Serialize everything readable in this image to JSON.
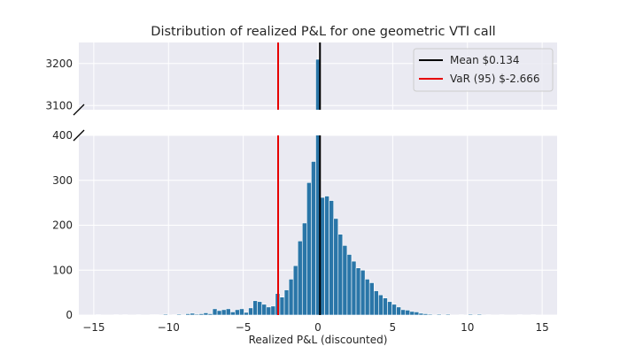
{
  "chart_data": {
    "type": "bar",
    "title": "Distribution of realized P&L for one geometric VTI call",
    "xlabel": "Realized P&L (discounted)",
    "ylabel": "",
    "xlim": [
      -16,
      16
    ],
    "broken_y_axis": true,
    "ylim_lower": [
      0,
      400
    ],
    "ylim_upper": [
      3090,
      3250
    ],
    "x_ticks": [
      -15,
      -10,
      -5,
      0,
      5,
      10,
      15
    ],
    "y_ticks_lower": [
      0,
      100,
      200,
      300,
      400
    ],
    "y_ticks_upper": [
      3100,
      3200
    ],
    "bin_width": 0.3,
    "bins": [
      {
        "x": -14.7,
        "count": 1
      },
      {
        "x": -13.5,
        "count": 1
      },
      {
        "x": -12.9,
        "count": 1
      },
      {
        "x": -12.0,
        "count": 1
      },
      {
        "x": -11.1,
        "count": 1
      },
      {
        "x": -10.8,
        "count": 1
      },
      {
        "x": -10.2,
        "count": 2
      },
      {
        "x": -9.6,
        "count": 1
      },
      {
        "x": -9.3,
        "count": 2
      },
      {
        "x": -8.7,
        "count": 3
      },
      {
        "x": -8.4,
        "count": 4
      },
      {
        "x": -8.1,
        "count": 2
      },
      {
        "x": -7.8,
        "count": 3
      },
      {
        "x": -7.5,
        "count": 5
      },
      {
        "x": -7.2,
        "count": 3
      },
      {
        "x": -6.9,
        "count": 14
      },
      {
        "x": -6.6,
        "count": 10
      },
      {
        "x": -6.3,
        "count": 12
      },
      {
        "x": -6.0,
        "count": 14
      },
      {
        "x": -5.7,
        "count": 7
      },
      {
        "x": -5.4,
        "count": 12
      },
      {
        "x": -5.1,
        "count": 14
      },
      {
        "x": -4.8,
        "count": 6
      },
      {
        "x": -4.5,
        "count": 16
      },
      {
        "x": -4.2,
        "count": 32
      },
      {
        "x": -3.9,
        "count": 30
      },
      {
        "x": -3.6,
        "count": 24
      },
      {
        "x": -3.3,
        "count": 18
      },
      {
        "x": -3.0,
        "count": 20
      },
      {
        "x": -2.7,
        "count": 48
      },
      {
        "x": -2.4,
        "count": 40
      },
      {
        "x": -2.1,
        "count": 56
      },
      {
        "x": -1.8,
        "count": 80
      },
      {
        "x": -1.5,
        "count": 110
      },
      {
        "x": -1.2,
        "count": 165
      },
      {
        "x": -0.9,
        "count": 205
      },
      {
        "x": -0.6,
        "count": 295
      },
      {
        "x": -0.3,
        "count": 342
      },
      {
        "x": 0.0,
        "count": 3210
      },
      {
        "x": 0.3,
        "count": 262
      },
      {
        "x": 0.6,
        "count": 265
      },
      {
        "x": 0.9,
        "count": 255
      },
      {
        "x": 1.2,
        "count": 215
      },
      {
        "x": 1.5,
        "count": 180
      },
      {
        "x": 1.8,
        "count": 155
      },
      {
        "x": 2.1,
        "count": 135
      },
      {
        "x": 2.4,
        "count": 120
      },
      {
        "x": 2.7,
        "count": 105
      },
      {
        "x": 3.0,
        "count": 100
      },
      {
        "x": 3.3,
        "count": 80
      },
      {
        "x": 3.6,
        "count": 72
      },
      {
        "x": 3.9,
        "count": 54
      },
      {
        "x": 4.2,
        "count": 45
      },
      {
        "x": 4.5,
        "count": 38
      },
      {
        "x": 4.8,
        "count": 30
      },
      {
        "x": 5.1,
        "count": 24
      },
      {
        "x": 5.4,
        "count": 18
      },
      {
        "x": 5.7,
        "count": 12
      },
      {
        "x": 6.0,
        "count": 11
      },
      {
        "x": 6.3,
        "count": 8
      },
      {
        "x": 6.6,
        "count": 7
      },
      {
        "x": 6.9,
        "count": 4
      },
      {
        "x": 7.2,
        "count": 3
      },
      {
        "x": 7.5,
        "count": 2
      },
      {
        "x": 8.1,
        "count": 2
      },
      {
        "x": 8.7,
        "count": 2
      },
      {
        "x": 9.6,
        "count": 1
      },
      {
        "x": 10.2,
        "count": 2
      },
      {
        "x": 10.8,
        "count": 2
      },
      {
        "x": 11.4,
        "count": 1
      },
      {
        "x": 12.3,
        "count": 1
      },
      {
        "x": 13.5,
        "count": 1
      },
      {
        "x": 14.4,
        "count": 1
      }
    ],
    "vlines": [
      {
        "label": "Mean $0.134",
        "x": 0.134,
        "color": "#000000"
      },
      {
        "label": "VaR (95) $-2.666",
        "x": -2.666,
        "color": "#e60000"
      }
    ],
    "bar_color": "#2a76a8",
    "background_color": "#eaeaf2",
    "grid": true,
    "legend_position": "top-right"
  }
}
